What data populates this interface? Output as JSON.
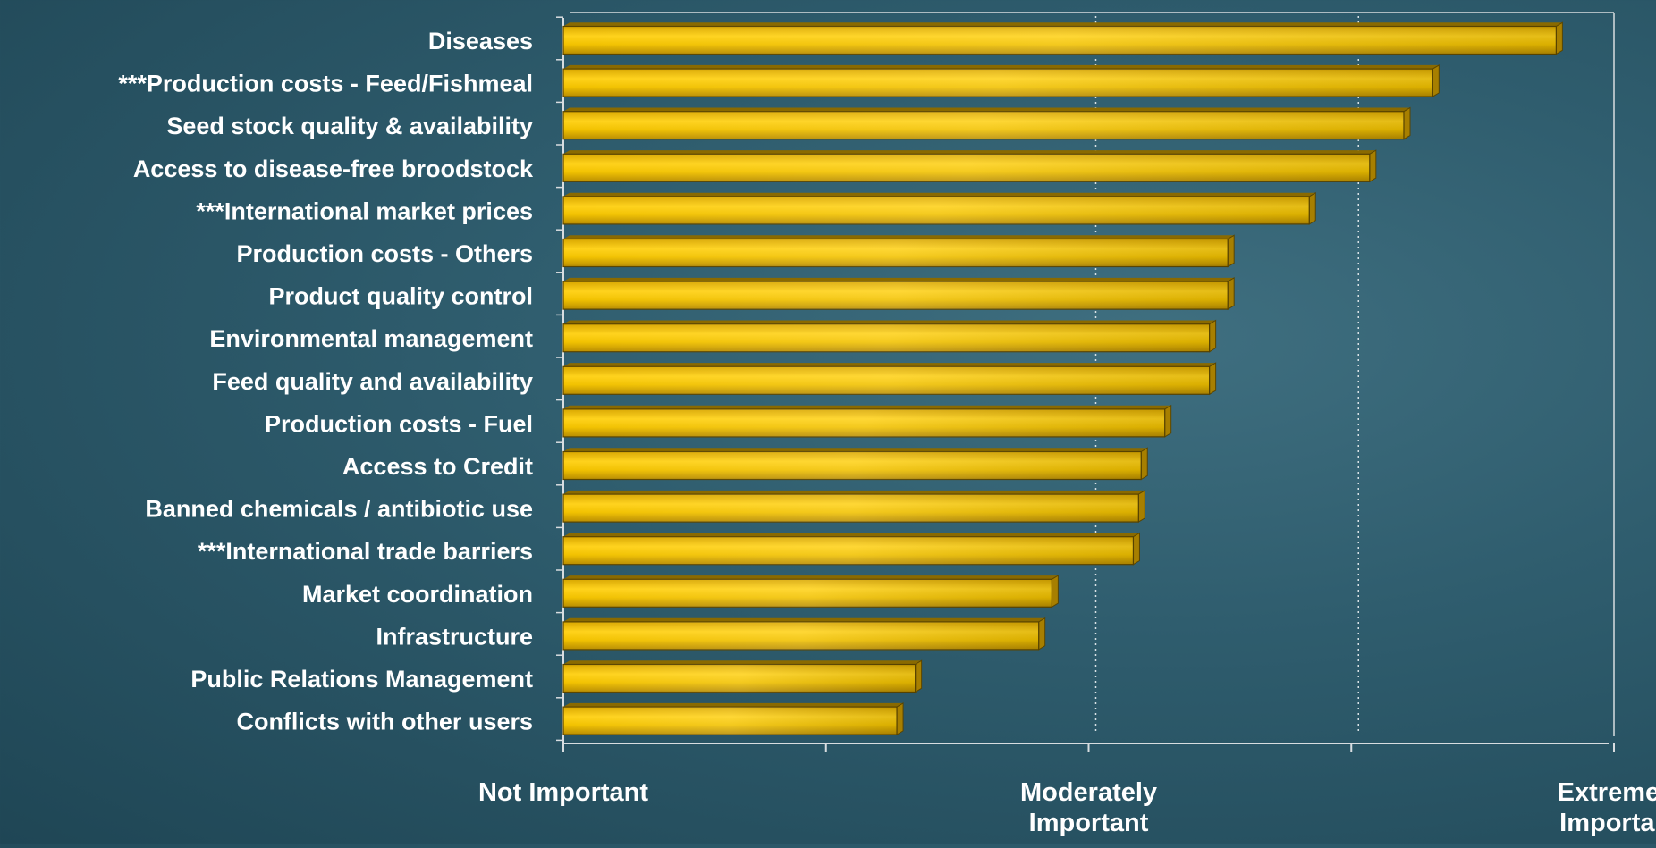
{
  "chart_data": {
    "type": "bar",
    "orientation": "horizontal",
    "categories": [
      "Diseases",
      "***Production costs - Feed/Fishmeal",
      "Seed stock quality & availability",
      "Access to disease-free broodstock",
      "***International market prices",
      "Production costs - Others",
      "Product quality control",
      "Environmental management",
      "Feed quality and availability",
      "Production costs - Fuel",
      "Access to Credit",
      "Banned chemicals / antibiotic use",
      "***International trade barriers",
      "Market coordination",
      "Infrastructure",
      "Public Relations Management",
      "Conflicts with other users"
    ],
    "values": [
      3.78,
      3.31,
      3.2,
      3.07,
      2.84,
      2.53,
      2.53,
      2.46,
      2.46,
      2.29,
      2.2,
      2.19,
      2.17,
      1.86,
      1.81,
      1.34,
      1.27
    ],
    "xlim": [
      0,
      4
    ],
    "x_ticks": [
      0,
      1,
      2,
      3,
      4
    ],
    "x_tick_labels": [
      {
        "value": 0,
        "lines": [
          "Not Important"
        ]
      },
      {
        "value": 2,
        "lines": [
          "Moderately",
          "Important"
        ]
      },
      {
        "value": 4,
        "lines": [
          "Extremely",
          "Important"
        ]
      }
    ],
    "grid": "vertical dotted at x = 2 and x = 3",
    "bar_color": "#f2c200",
    "bar_dark_color": "#a77f00",
    "text_color": "#ffffff",
    "axis_color": "#d8dde0"
  }
}
